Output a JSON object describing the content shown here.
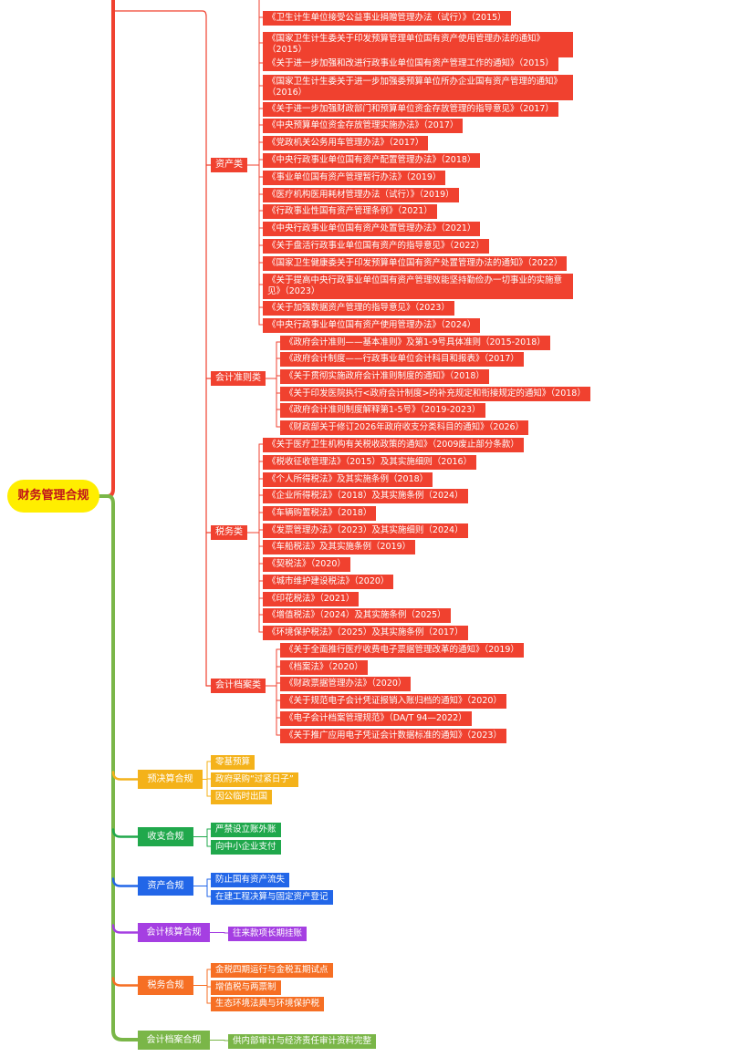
{
  "root": "财务管理合规",
  "categories": {
    "asset": "资产类",
    "accounting": "会计准则类",
    "tax": "税务类",
    "archive": "会计档案类"
  },
  "asset_items": [
    "《卫生计生单位接受公益事业捐赠管理办法（试行）》（2015）",
    "《国家卫生计生委关于印发预算管理单位国有资产使用管理办法的通知》（2015）",
    "《关于进一步加强和改进行政事业单位国有资产管理工作的通知》（2015）",
    "《国家卫生计生委关于进一步加强委预算单位所办企业国有资产管理的通知》（2016）",
    "《关于进一步加强财政部门和预算单位资金存放管理的指导意见》（2017）",
    "《中央预算单位资金存放管理实施办法》（2017）",
    "《党政机关公务用车管理办法》（2017）",
    "《中央行政事业单位国有资产配置管理办法》（2018）",
    "《事业单位国有资产管理暂行办法》（2019）",
    "《医疗机构医用耗材管理办法（试行）》（2019）",
    "《行政事业性国有资产管理条例》（2021）",
    "《中央行政事业单位国有资产处置管理办法》（2021）",
    "《关于盘活行政事业单位国有资产的指导意见》（2022）",
    "《国家卫生健康委关于印发预算单位国有资产处置管理办法的通知》（2022）",
    "《关于提高中央行政事业单位国有资产管理效能坚持勤俭办一切事业的实施意见》（2023）",
    "《关于加强数据资产管理的指导意见》（2023）",
    "《中央行政事业单位国有资产使用管理办法》（2024）"
  ],
  "accounting_items": [
    "《政府会计准则——基本准则》及第1-9号具体准则（2015-2018）",
    "《政府会计制度——行政事业单位会计科目和报表》（2017）",
    "《关于贯彻实施政府会计准则制度的通知》（2018）",
    "《关于印发医院执行<政府会计制度>的补充规定和衔接规定的通知》（2018）",
    "《政府会计准则制度解释第1-5号》（2019-2023）",
    "《财政部关于修订2026年政府收支分类科目的通知》（2026）"
  ],
  "tax_items": [
    "《关于医疗卫生机构有关税收政策的通知》（2009废止部分条款）",
    "《税收征收管理法》（2015）及其实施细则（2016）",
    "《个人所得税法》及其实施条例（2018）",
    "《企业所得税法》（2018）及其实施条例（2024）",
    "《车辆购置税法》（2018）",
    "《发票管理办法》（2023）及其实施细则（2024）",
    "《车船税法》及其实施条例（2019）",
    "《契税法》（2020）",
    "《城市维护建设税法》（2020）",
    "《印花税法》（2021）",
    "《增值税法》（2024）及其实施条例（2025）",
    "《环境保护税法》（2025）及其实施条例（2017）"
  ],
  "archive_items": [
    "《关于全面推行医疗收费电子票据管理改革的通知》（2019）",
    "《档案法》（2020）",
    "《财政票据管理办法》（2020）",
    "《关于规范电子会计凭证报销入账归档的通知》（2020）",
    "《电子会计档案管理规范》（DA/T 94—2022）",
    "《关于推广应用电子凭证会计数据标准的通知》（2023）"
  ],
  "branches": [
    {
      "label": "预决算合规",
      "color": "#f4b21a",
      "items": [
        "零基预算",
        "政府采购“过紧日子”",
        "因公临时出国"
      ]
    },
    {
      "label": "收支合规",
      "color": "#20a84c",
      "items": [
        "严禁设立账外账",
        "向中小企业支付"
      ]
    },
    {
      "label": "资产合规",
      "color": "#2266e8",
      "items": [
        "防止国有资产流失",
        "在建工程决算与固定资产登记"
      ]
    },
    {
      "label": "会计核算合规",
      "color": "#a53fe2",
      "items": [
        "往来款项长期挂账"
      ]
    },
    {
      "label": "税务合规",
      "color": "#f66f24",
      "items": [
        "金税四期运行与金税五期试点",
        "增值税与两票制",
        "生态环境法典与环境保护税"
      ]
    },
    {
      "label": "会计档案合规",
      "color": "#7ab648",
      "items": [
        "供内部审计与经济责任审计资料完整"
      ]
    }
  ],
  "colors": {
    "red_branch": "#f0412f",
    "root_bg": "#ffee00",
    "root_text": "#c0121b"
  }
}
